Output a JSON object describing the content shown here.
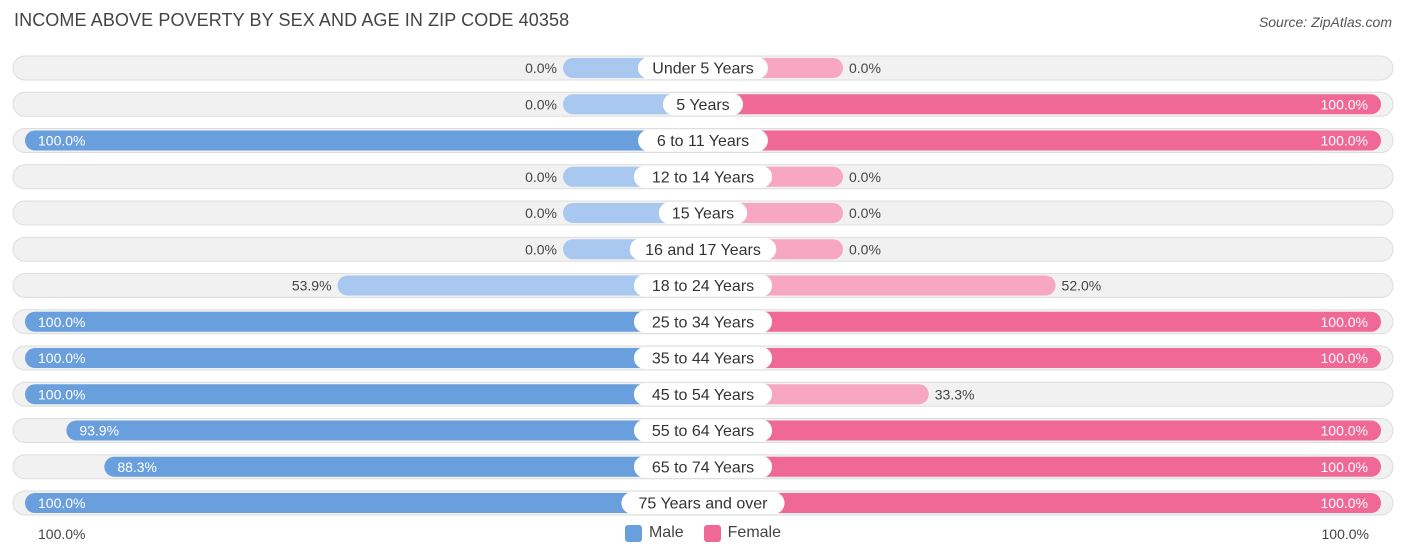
{
  "header": {
    "title": "INCOME ABOVE POVERTY BY SEX AND AGE IN ZIP CODE 40358",
    "source": "Source: ZipAtlas.com"
  },
  "axis": {
    "left_label": "100.0%",
    "right_label": "100.0%"
  },
  "legend": [
    {
      "name": "Male",
      "color": "#6a9fdd"
    },
    {
      "name": "Female",
      "color": "#f06895"
    }
  ],
  "colors": {
    "male_full": "#6a9fdd",
    "male_light": "#a9c8ef",
    "female_full": "#f06895",
    "female_light": "#f7a7c1",
    "row_bg": "#f1f1f1",
    "row_border": "#dedede"
  },
  "chart_data": {
    "type": "bar",
    "orientation": "horizontal-diverging",
    "title": "INCOME ABOVE POVERTY BY SEX AND AGE IN ZIP CODE 40358",
    "xlim": [
      0,
      100
    ],
    "legend_position": "bottom-center",
    "categories": [
      "Under 5 Years",
      "5 Years",
      "6 to 11 Years",
      "12 to 14 Years",
      "15 Years",
      "16 and 17 Years",
      "18 to 24 Years",
      "25 to 34 Years",
      "35 to 44 Years",
      "45 to 54 Years",
      "55 to 64 Years",
      "65 to 74 Years",
      "75 Years and over"
    ],
    "series": [
      {
        "name": "Male",
        "values": [
          0.0,
          0.0,
          100.0,
          0.0,
          0.0,
          0.0,
          53.9,
          100.0,
          100.0,
          100.0,
          93.9,
          88.3,
          100.0
        ],
        "labels": [
          "0.0%",
          "0.0%",
          "100.0%",
          "0.0%",
          "0.0%",
          "0.0%",
          "53.9%",
          "100.0%",
          "100.0%",
          "100.0%",
          "93.9%",
          "88.3%",
          "100.0%"
        ]
      },
      {
        "name": "Female",
        "values": [
          0.0,
          100.0,
          100.0,
          0.0,
          0.0,
          0.0,
          52.0,
          100.0,
          100.0,
          33.3,
          100.0,
          100.0,
          100.0
        ],
        "labels": [
          "0.0%",
          "100.0%",
          "100.0%",
          "0.0%",
          "0.0%",
          "0.0%",
          "52.0%",
          "100.0%",
          "100.0%",
          "33.3%",
          "100.0%",
          "100.0%",
          "100.0%"
        ]
      }
    ]
  }
}
